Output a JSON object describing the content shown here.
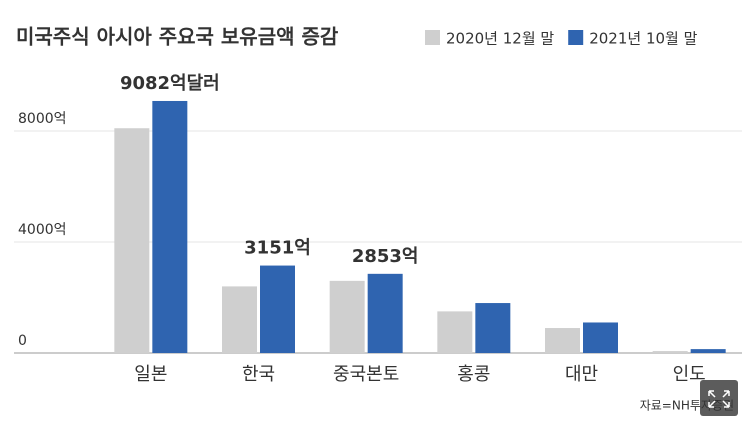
{
  "chart_data": {
    "type": "bar",
    "title": "미국주식 아시아 주요국 보유금액 증감",
    "categories": [
      "일본",
      "한국",
      "중국본토",
      "홍콩",
      "대만",
      "인도"
    ],
    "series": [
      {
        "name": "2020년 12월 말",
        "color": "#cfcfcf",
        "values": [
          8100,
          2400,
          2600,
          1500,
          900,
          70
        ]
      },
      {
        "name": "2021년 10월 말",
        "color": "#2f64b0",
        "values": [
          9082,
          3151,
          2853,
          1800,
          1100,
          140
        ],
        "value_labels": [
          "9082억달러",
          "3151억",
          "2853억",
          null,
          null,
          null
        ]
      }
    ],
    "ylim": [
      0,
      10000
    ],
    "yticks": [
      0,
      {
        "value": 4000,
        "label": "4000억"
      },
      {
        "value": 8000,
        "label": "8000억"
      }
    ],
    "source": "자료=NH투자증권"
  }
}
